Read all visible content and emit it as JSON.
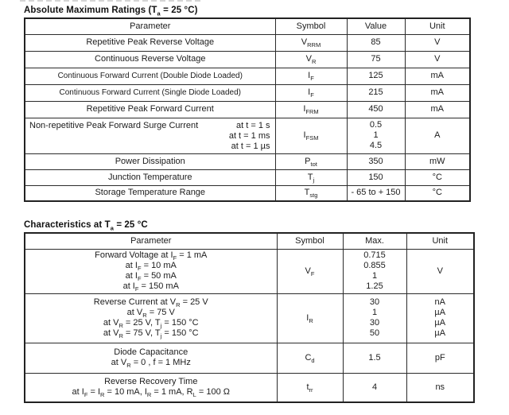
{
  "page": {
    "background": "#ffffff",
    "text_color": "#1c1c1c",
    "border_color": "#2b2b2b"
  },
  "table1": {
    "title": "Absolute Maximum Ratings (T~a~ = 25 °C)",
    "headers": {
      "parameter": "Parameter",
      "symbol": "Symbol",
      "value": "Value",
      "unit": "Unit"
    },
    "rows": [
      {
        "parameter": "Repetitive Peak Reverse Voltage",
        "symbol": "V~RRM~",
        "value": "85",
        "unit": "V"
      },
      {
        "parameter": "Continuous Reverse Voltage",
        "symbol": "V~R~",
        "value": "75",
        "unit": "V"
      },
      {
        "parameter": "Continuous Forward Current (Double Diode Loaded)",
        "symbol": "I~F~",
        "value": "125",
        "unit": "mA"
      },
      {
        "parameter": "Continuous Forward Current (Single Diode Loaded)",
        "symbol": "I~F~",
        "value": "215",
        "unit": "mA"
      },
      {
        "parameter": "Repetitive Peak Forward Current",
        "symbol": "I~FRM~",
        "value": "450",
        "unit": "mA"
      },
      {
        "parameter": "Non-repetitive Peak Forward Surge Current",
        "conditions": "at t = 1 s\nat t = 1 ms\nat t = 1 µs",
        "symbol": "I~FSM~",
        "value": "0.5\n1\n4.5",
        "unit": "A"
      },
      {
        "parameter": "Power Dissipation",
        "symbol": "P~tot~",
        "value": "350",
        "unit": "mW"
      },
      {
        "parameter": "Junction Temperature",
        "symbol": "T~j~",
        "value": "150",
        "unit": "°C"
      },
      {
        "parameter": "Storage Temperature Range",
        "symbol": "T~stg~",
        "value": "- 65 to + 150",
        "unit": "°C"
      }
    ]
  },
  "table2": {
    "title": "Characteristics at T~a~ = 25 °C",
    "headers": {
      "parameter": "Parameter",
      "symbol": "Symbol",
      "max": "Max.",
      "unit": "Unit"
    },
    "rows": [
      {
        "parameter": "Forward Voltage at I~F~ = 1 mA\nat I~F~ = 10 mA\nat I~F~ = 50 mA\nat I~F~ = 150 mA",
        "symbol": "V~F~",
        "max": "0.715\n0.855\n1\n1.25",
        "unit": "V"
      },
      {
        "parameter": "Reverse Current at V~R~ = 25 V\nat V~R~ = 75 V\nat V~R~ = 25 V, T~j~ = 150 °C\nat V~R~ = 75 V, T~j~ = 150 °C",
        "symbol": "I~R~",
        "max": "30\n1\n30\n50",
        "unit": "nA\nµA\nµA\nµA"
      },
      {
        "parameter": "Diode Capacitance\nat V~R~ = 0 , f = 1 MHz",
        "symbol": "C~d~",
        "max": "1.5",
        "unit": "pF"
      },
      {
        "parameter": "Reverse Recovery Time\nat I~F~ = I~R~ = 10 mA, I~R~ = 1 mA, R~L~ = 100 Ω",
        "symbol": "t~rr~",
        "max": "4",
        "unit": "ns"
      }
    ]
  }
}
